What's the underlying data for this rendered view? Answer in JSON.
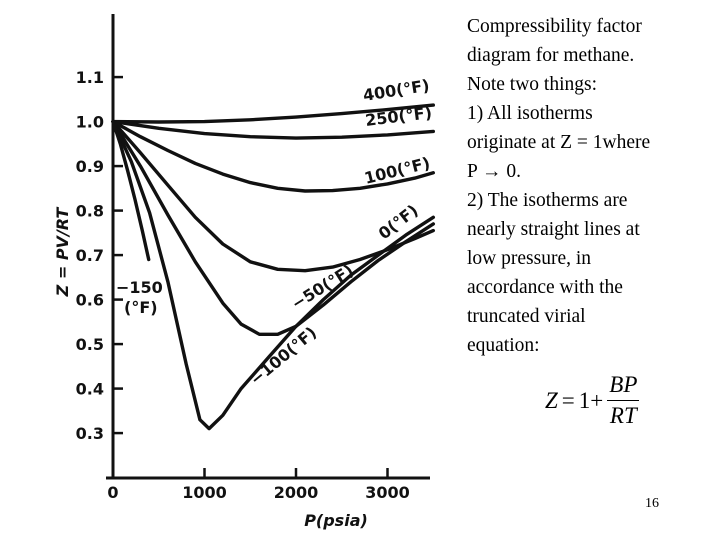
{
  "slide": {
    "note_lines": [
      "Compressibility factor",
      "diagram for methane.",
      "Note two things:",
      "1) All isotherms",
      "originate at Z = 1where",
      "P → 0.",
      "2) The isotherms are",
      "nearly straight lines at",
      "low pressure, in",
      "accordance with the",
      "truncated virial",
      "equation:"
    ],
    "equation": {
      "lhs": "Z",
      "equals": "=",
      "one_plus": "1+",
      "numerator": "BP",
      "denominator": "RT"
    },
    "page_number": "16"
  },
  "chart_data": {
    "type": "line",
    "title": "",
    "xlabel": "P(psia)",
    "ylabel": "Z = PV/RT",
    "xlim": [
      0,
      3500
    ],
    "ylim": [
      0.23,
      1.2
    ],
    "grid": false,
    "x_ticks": [
      0,
      1000,
      2000,
      3000
    ],
    "x_tick_labels": [
      "0",
      "1000",
      "2000",
      "3000"
    ],
    "y_ticks": [
      0.3,
      0.4,
      0.5,
      0.6,
      0.7,
      0.8,
      0.9,
      1.0,
      1.1
    ],
    "y_tick_labels": [
      "0.3",
      "0.4",
      "0.5",
      "0.6",
      "0.7",
      "0.8",
      "0.9",
      "1.0",
      "1.1"
    ],
    "series": [
      {
        "name": "400(°F)",
        "x": [
          0,
          500,
          1000,
          1500,
          2000,
          2500,
          3000,
          3500
        ],
        "y": [
          1.0,
          0.999,
          1.0,
          1.004,
          1.01,
          1.018,
          1.027,
          1.037
        ]
      },
      {
        "name": "250(°F)",
        "x": [
          0,
          500,
          1000,
          1500,
          2000,
          2500,
          3000,
          3500
        ],
        "y": [
          1.0,
          0.985,
          0.973,
          0.966,
          0.963,
          0.965,
          0.97,
          0.978
        ]
      },
      {
        "name": "100(°F)",
        "x": [
          0,
          300,
          600,
          900,
          1200,
          1500,
          1800,
          2100,
          2400,
          2700,
          3000,
          3300,
          3500
        ],
        "y": [
          1.0,
          0.966,
          0.935,
          0.906,
          0.882,
          0.863,
          0.85,
          0.844,
          0.845,
          0.85,
          0.86,
          0.873,
          0.885
        ]
      },
      {
        "name": "0(°F)",
        "x": [
          0,
          300,
          600,
          900,
          1200,
          1500,
          1800,
          2100,
          2400,
          2700,
          3000,
          3300,
          3500
        ],
        "y": [
          1.0,
          0.93,
          0.857,
          0.785,
          0.725,
          0.685,
          0.668,
          0.665,
          0.673,
          0.69,
          0.712,
          0.737,
          0.755
        ]
      },
      {
        "name": "-50(°F)",
        "x": [
          0,
          300,
          600,
          900,
          1200,
          1400,
          1600,
          1800,
          2000,
          2300,
          2600,
          2900,
          3200,
          3500
        ],
        "y": [
          1.0,
          0.9,
          0.79,
          0.685,
          0.592,
          0.545,
          0.522,
          0.522,
          0.54,
          0.588,
          0.64,
          0.688,
          0.73,
          0.77
        ]
      },
      {
        "name": "-100(°F)",
        "x": [
          0,
          200,
          400,
          600,
          800,
          950,
          1050,
          1200,
          1400,
          1700,
          2000,
          2300,
          2600,
          2900,
          3200,
          3500
        ],
        "y": [
          1.0,
          0.91,
          0.795,
          0.64,
          0.455,
          0.33,
          0.31,
          0.34,
          0.4,
          0.47,
          0.54,
          0.6,
          0.655,
          0.7,
          0.745,
          0.785
        ]
      },
      {
        "name": "-150(°F)",
        "x": [
          0,
          80,
          160,
          240,
          320,
          390
        ],
        "y": [
          1.0,
          0.95,
          0.89,
          0.825,
          0.755,
          0.69
        ]
      }
    ]
  }
}
